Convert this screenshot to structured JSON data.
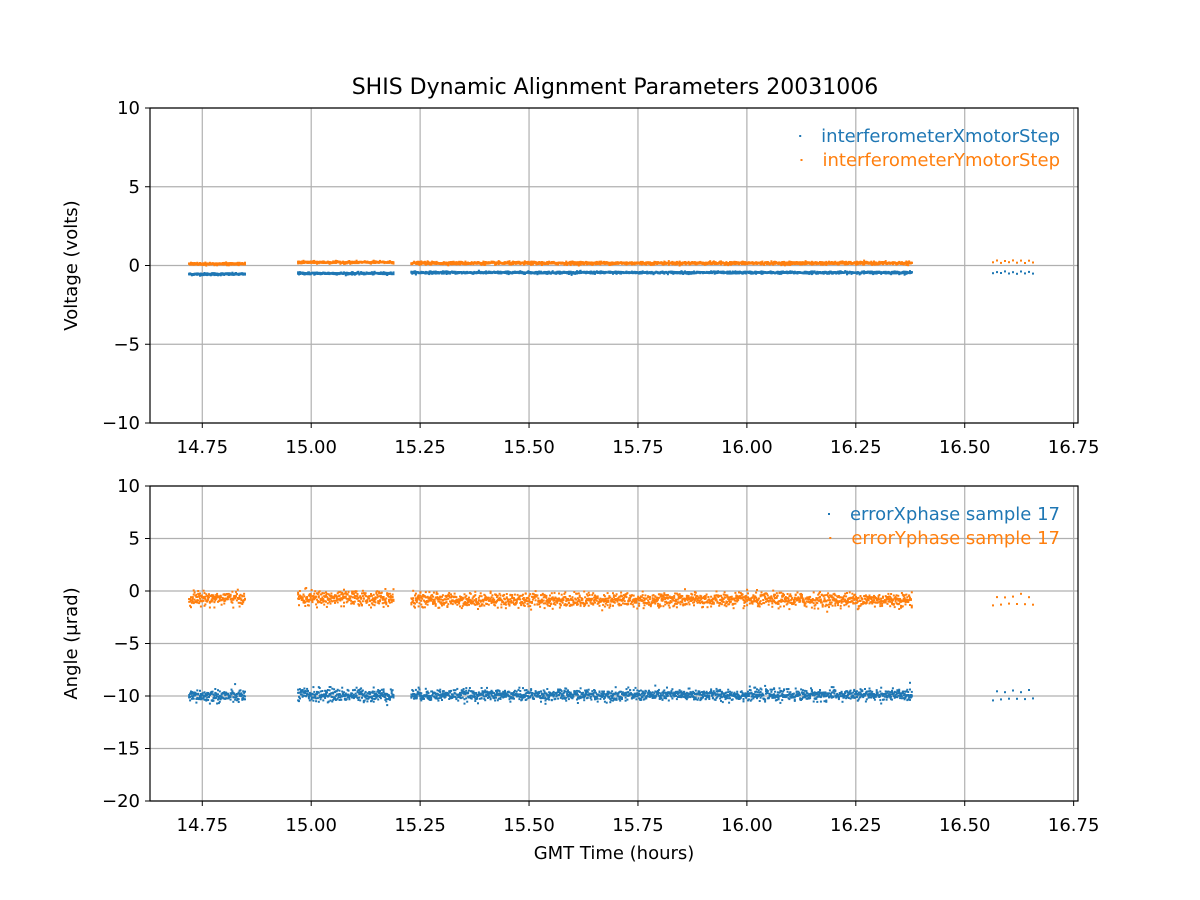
{
  "title": "SHIS Dynamic Alignment Parameters 20031006",
  "chart_data": [
    {
      "type": "scatter",
      "ylabel": "Voltage (volts)",
      "xlabel": "",
      "xlim": [
        14.63,
        16.76
      ],
      "ylim": [
        -10,
        10
      ],
      "x_ticks": [
        14.75,
        15.0,
        15.25,
        15.5,
        15.75,
        16.0,
        16.25,
        16.5,
        16.75
      ],
      "x_tick_labels": [
        "14.75",
        "15.00",
        "15.25",
        "15.50",
        "15.75",
        "16.00",
        "16.25",
        "16.50",
        "16.75"
      ],
      "y_ticks": [
        10,
        5,
        0,
        -5,
        -10
      ],
      "y_tick_labels": [
        "10",
        "5",
        "0",
        "−5",
        "−10"
      ],
      "grid": true,
      "legend_position": "top-right",
      "series": [
        {
          "name": "interferometerXmotorStep",
          "color": "#1f77b4",
          "segments": [
            {
              "x_start": 14.72,
              "x_end": 14.85,
              "y": -0.55,
              "spread": 0.08,
              "density": "dense"
            },
            {
              "x_start": 14.97,
              "x_end": 15.19,
              "y": -0.5,
              "spread": 0.08,
              "density": "dense"
            },
            {
              "x_start": 15.23,
              "x_end": 16.38,
              "y": -0.45,
              "spread": 0.08,
              "density": "dense"
            },
            {
              "x_start": 16.565,
              "x_end": 16.665,
              "y": -0.45,
              "spread": 0.08,
              "density": "sparse"
            }
          ]
        },
        {
          "name": "interferometerYmotorStep",
          "color": "#ff7f0e",
          "segments": [
            {
              "x_start": 14.72,
              "x_end": 14.85,
              "y": 0.1,
              "spread": 0.08,
              "density": "dense"
            },
            {
              "x_start": 14.97,
              "x_end": 15.19,
              "y": 0.2,
              "spread": 0.08,
              "density": "dense"
            },
            {
              "x_start": 15.23,
              "x_end": 16.38,
              "y": 0.15,
              "spread": 0.1,
              "density": "dense"
            },
            {
              "x_start": 16.565,
              "x_end": 16.665,
              "y": 0.25,
              "spread": 0.08,
              "density": "sparse"
            }
          ]
        }
      ]
    },
    {
      "type": "scatter",
      "ylabel": "Angle (μrad)",
      "xlabel": "GMT Time (hours)",
      "xlim": [
        14.63,
        16.76
      ],
      "ylim": [
        -20,
        10
      ],
      "x_ticks": [
        14.75,
        15.0,
        15.25,
        15.5,
        15.75,
        16.0,
        16.25,
        16.5,
        16.75
      ],
      "x_tick_labels": [
        "14.75",
        "15.00",
        "15.25",
        "15.50",
        "15.75",
        "16.00",
        "16.25",
        "16.50",
        "16.75"
      ],
      "y_ticks": [
        10,
        5,
        0,
        -5,
        -10,
        -15,
        -20
      ],
      "y_tick_labels": [
        "10",
        "5",
        "0",
        "−5",
        "−10",
        "−15",
        "−20"
      ],
      "grid": true,
      "legend_position": "top-right",
      "series": [
        {
          "name": "errorXphase sample 17",
          "color": "#1f77b4",
          "segments": [
            {
              "x_start": 14.72,
              "x_end": 14.85,
              "y": -10.0,
              "spread": 0.7,
              "density": "dense"
            },
            {
              "x_start": 14.97,
              "x_end": 15.19,
              "y": -9.9,
              "spread": 0.7,
              "density": "dense"
            },
            {
              "x_start": 15.23,
              "x_end": 16.38,
              "y": -9.9,
              "spread": 0.6,
              "density": "dense"
            },
            {
              "x_start": 16.565,
              "x_end": 16.665,
              "y": -9.9,
              "spread": 0.5,
              "density": "sparse"
            }
          ]
        },
        {
          "name": "errorYphase sample 17",
          "color": "#ff7f0e",
          "segments": [
            {
              "x_start": 14.72,
              "x_end": 14.85,
              "y": -0.7,
              "spread": 0.7,
              "density": "dense"
            },
            {
              "x_start": 14.97,
              "x_end": 15.19,
              "y": -0.7,
              "spread": 0.8,
              "density": "dense"
            },
            {
              "x_start": 15.23,
              "x_end": 16.38,
              "y": -0.85,
              "spread": 0.75,
              "density": "dense"
            },
            {
              "x_start": 16.565,
              "x_end": 16.665,
              "y": -0.9,
              "spread": 0.5,
              "density": "sparse"
            }
          ]
        }
      ]
    }
  ]
}
